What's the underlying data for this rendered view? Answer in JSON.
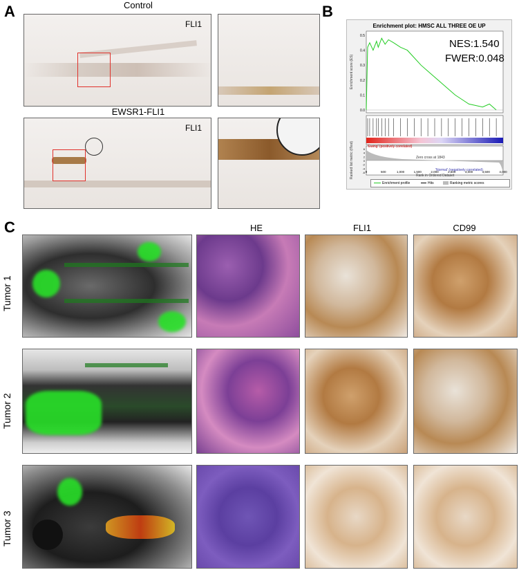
{
  "panels": {
    "A": {
      "letter": "A",
      "control_title": "Control",
      "ews_title": "EWSR1-FLI1",
      "stain_label_top": "FLI1",
      "stain_label_bottom": "FLI1"
    },
    "B": {
      "letter": "B",
      "title": "Enrichment plot: HMSC ALL THREE OE UP",
      "nes": "NES:1.540",
      "fwer": "FWER:0.048",
      "es_axis_label": "Enrichment score (ES)",
      "metric_axis_label": "Ranked list metric (tTest)",
      "x_axis_label": "Rank in Ordered Dataset",
      "positive_label": "'Ewing' (positively correlated)",
      "negative_label": "'Normal' (negatively correlated)",
      "zero_cross": "Zero cross at 1843",
      "legend": {
        "profile": "Enrichment profile",
        "hits": "Hits",
        "ranking": "Ranking metric scores"
      }
    },
    "C": {
      "letter": "C",
      "col_headers": [
        "HE",
        "FLI1",
        "CD99"
      ],
      "tumors": [
        "Tumor 1",
        "Tumor 2",
        "Tumor 3"
      ]
    }
  },
  "chart_data": {
    "type": "line",
    "title": "Enrichment plot: HMSC ALL THREE OE UP",
    "xlabel": "Rank in Ordered Dataset",
    "ylabel": "Enrichment score (ES)",
    "xlim": [
      0,
      4000
    ],
    "ylim": [
      0.0,
      0.5
    ],
    "x_ticks": [
      "0",
      "500",
      "1,000",
      "1,500",
      "2,000",
      "2,500",
      "3,000",
      "3,500",
      "4,000"
    ],
    "y_ticks": [
      "0.0",
      "0.1",
      "0.2",
      "0.3",
      "0.4",
      "0.5"
    ],
    "series": [
      {
        "name": "Enrichment profile",
        "x": [
          0,
          40,
          100,
          200,
          300,
          350,
          450,
          550,
          650,
          800,
          1000,
          1200,
          1400,
          1600,
          1800,
          2000,
          2200,
          2400,
          2600,
          2800,
          3000,
          3200,
          3400,
          3600,
          3800
        ],
        "y": [
          0.0,
          0.42,
          0.45,
          0.4,
          0.46,
          0.42,
          0.48,
          0.44,
          0.47,
          0.45,
          0.42,
          0.4,
          0.35,
          0.3,
          0.26,
          0.22,
          0.18,
          0.14,
          0.1,
          0.07,
          0.04,
          0.03,
          0.02,
          0.04,
          0.0
        ]
      }
    ],
    "metric_ticks": [
      "6",
      "4",
      "2",
      "0",
      "-2",
      "-4",
      "-6"
    ],
    "metric_range": [
      -6,
      6
    ]
  }
}
